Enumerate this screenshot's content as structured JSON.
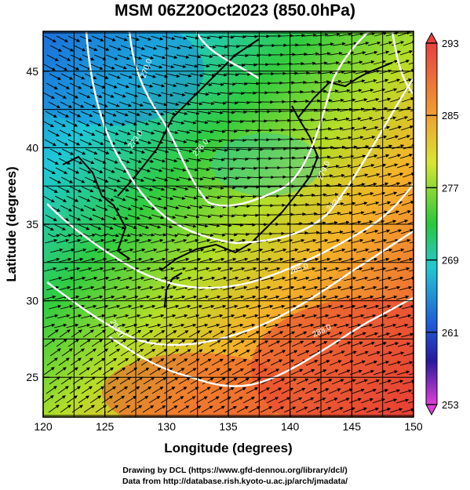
{
  "title": "MSM 06Z20Oct2023 (850.0hPa)",
  "xlabel": "Longitude (degrees)",
  "ylabel": "Latitude  (degrees)",
  "x_ticks": [
    "120",
    "125",
    "130",
    "135",
    "140",
    "145",
    "150"
  ],
  "y_ticks": [
    "25",
    "30",
    "35",
    "40",
    "45"
  ],
  "colorbar_labels": [
    "293",
    "285",
    "277",
    "269",
    "261",
    "253"
  ],
  "contour_labels": [
    "270.0",
    "273.0",
    "276.0",
    "279.0",
    "282.0",
    "285.0",
    "288.0",
    "291.0"
  ],
  "credit_line1": "Drawing by DCL (https://www.gfd-dennou.org/library/dcl/)",
  "credit_line2": "Data from http://database.rish.kyoto-u.ac.jp/arch/jmadata/",
  "colors": {
    "cold": "#1e5ad8",
    "cyan": "#22c8d2",
    "green": "#28c83c",
    "yellow": "#d2e628",
    "orange": "#f5a028",
    "red": "#ee4a32",
    "colorbar_top": "#e84040",
    "colorbar_bottom": "#e040d8"
  },
  "chart_data": {
    "type": "heatmap",
    "variable": "temperature (K) with wind streamlines",
    "level": "850.0hPa",
    "xlim": [
      120,
      150
    ],
    "ylim": [
      22.4,
      47.6
    ],
    "colorbar_range": [
      253,
      293
    ],
    "colorbar_ticks": [
      253,
      261,
      269,
      277,
      285,
      293
    ],
    "contour_levels": [
      270,
      273,
      276,
      279,
      282,
      285,
      288,
      291
    ],
    "grid": true,
    "legend_position": "right"
  }
}
